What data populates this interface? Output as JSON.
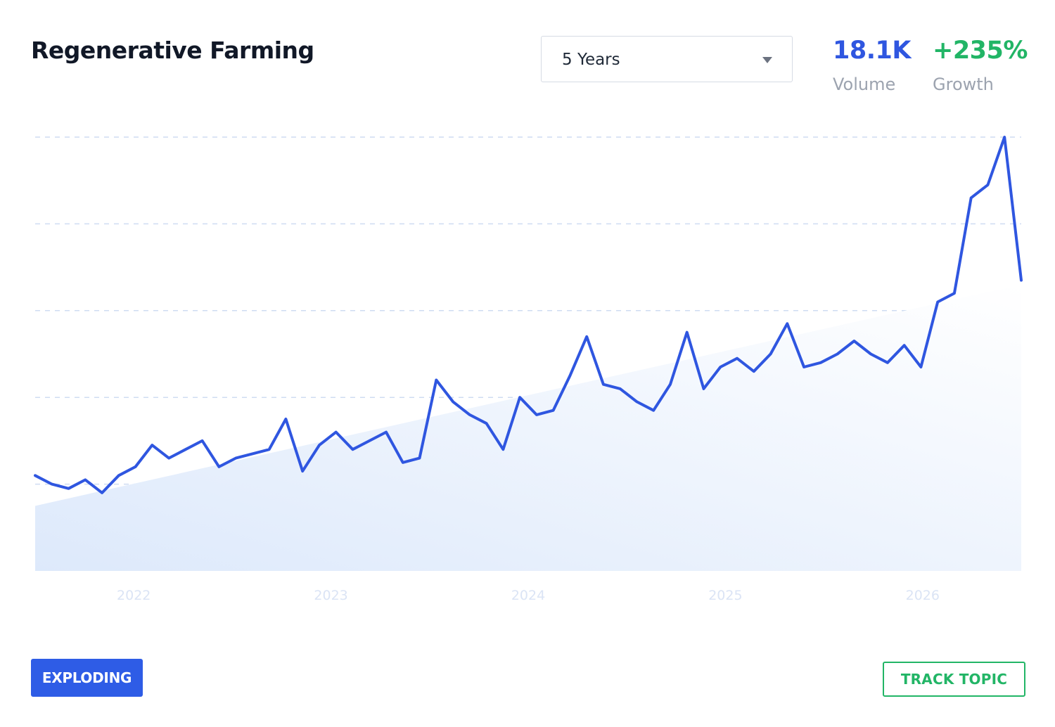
{
  "topic": {
    "title": "Regenerative Farming"
  },
  "timeframe": {
    "selected": "5 Years"
  },
  "stats": {
    "volume_value": "18.1K",
    "volume_label": "Volume",
    "growth_value": "+235%",
    "growth_label": "Growth"
  },
  "badge": {
    "label": "EXPLODING"
  },
  "actions": {
    "track_label": "TRACK TOPIC"
  },
  "colors": {
    "accent_blue": "#2f56e0",
    "growth_green": "#22b566",
    "badge_bg": "#2e5ce6",
    "gridline": "#cfdcf2",
    "tick_text": "#dbe4f5"
  },
  "icons": {
    "dropdown": "caret-down-icon"
  },
  "chart_data": {
    "type": "line",
    "x_ticks": [
      "2022",
      "2023",
      "2024",
      "2025",
      "2026"
    ],
    "x_range": [
      "2021-07",
      "2026-07"
    ],
    "series": [
      {
        "values": [
          22,
          20,
          19,
          21,
          18,
          22,
          24,
          29,
          26,
          28,
          30,
          24,
          26,
          27,
          28,
          35,
          23,
          29,
          32,
          28,
          30,
          32,
          25,
          26,
          44,
          39,
          36,
          34,
          28,
          40,
          36,
          37,
          45,
          54,
          43,
          42,
          39,
          37,
          43,
          55,
          42,
          47,
          49,
          46,
          50,
          57,
          47,
          48,
          50,
          53,
          50,
          48,
          52,
          47,
          62,
          64,
          86,
          89,
          100,
          67
        ]
      }
    ],
    "trend_line": {
      "start": 15,
      "end": 66
    },
    "y_range": [
      0,
      100
    ],
    "grid": true,
    "gridlines": 5,
    "y_axis_labels_shown": false
  }
}
